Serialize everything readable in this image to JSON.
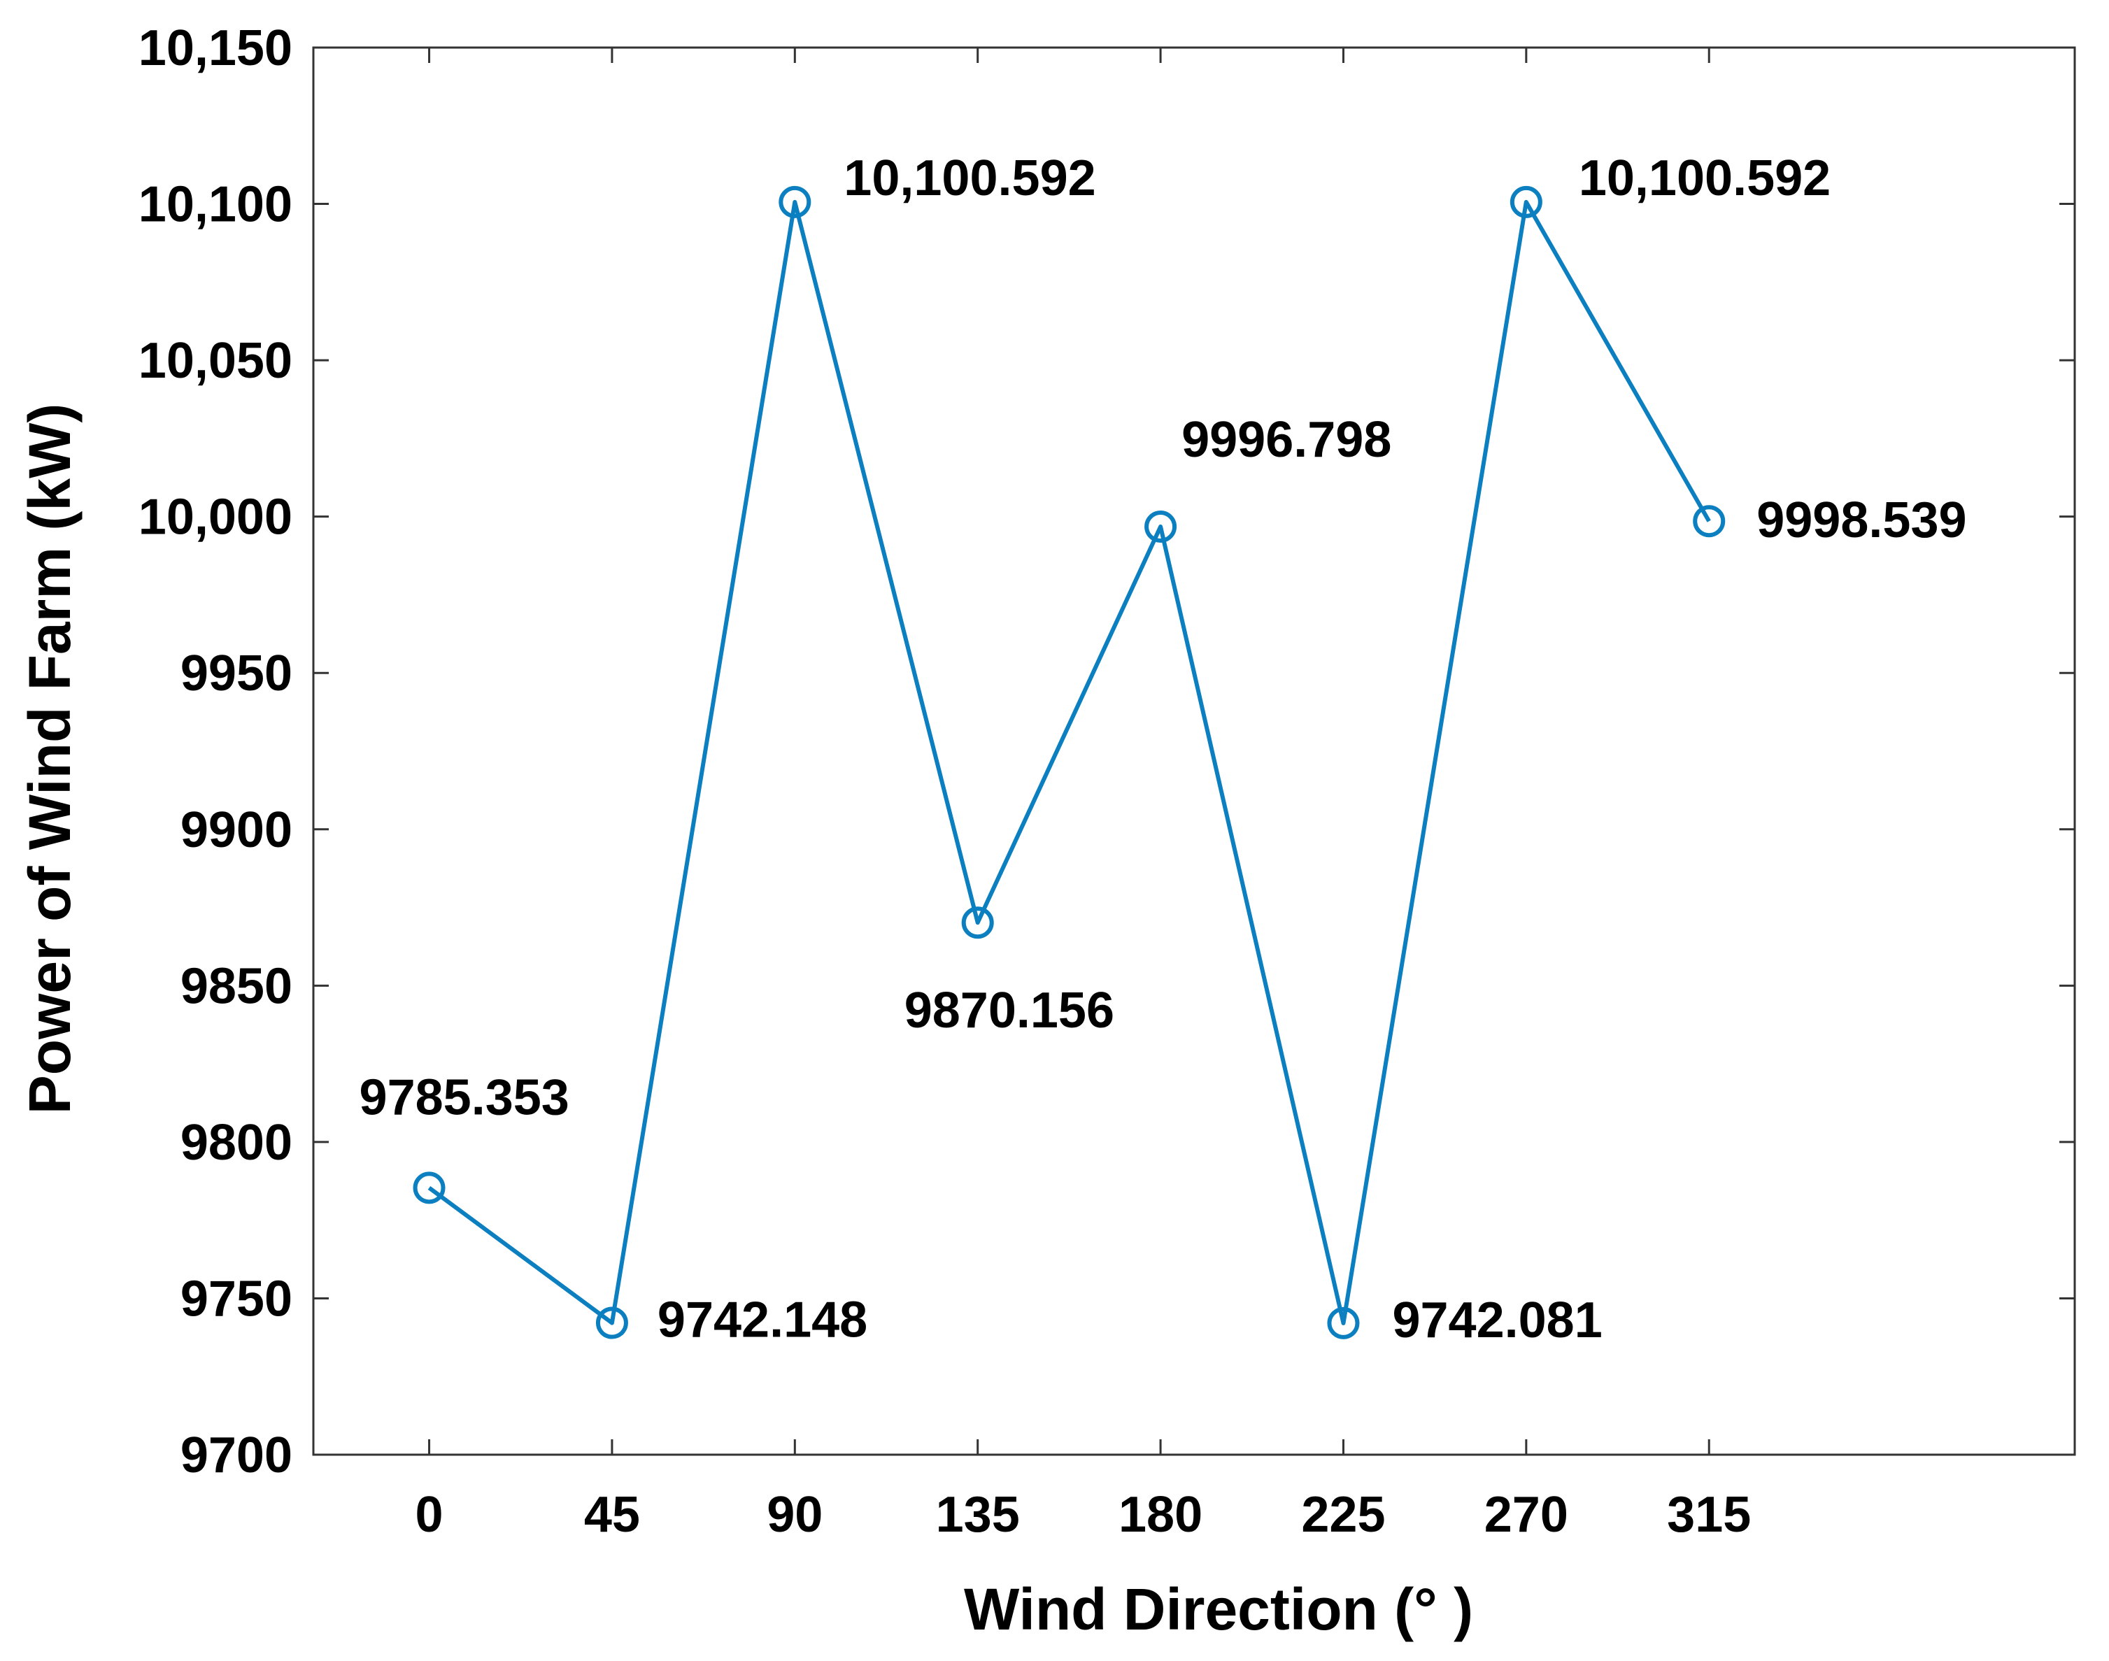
{
  "chart_data": {
    "type": "line",
    "title": "",
    "xlabel": "Wind Direction (° )",
    "ylabel": "Power of Wind Farm (kW)",
    "x": [
      0,
      45,
      90,
      135,
      180,
      225,
      270,
      315
    ],
    "x_tick_labels": [
      "0",
      "45",
      "90",
      "135",
      "180",
      "225",
      "270",
      "315"
    ],
    "xlim": [
      -28.5,
      405
    ],
    "ylim": [
      9700,
      10150
    ],
    "y_ticks": [
      9700,
      9750,
      9800,
      9850,
      9900,
      9950,
      10000,
      10050,
      10100,
      10150
    ],
    "y_tick_labels": [
      "9700",
      "9750",
      "9800",
      "9850",
      "9900",
      "9950",
      "10,000",
      "10,050",
      "10,100",
      "10,150"
    ],
    "grid": false,
    "legend": "none",
    "series": [
      {
        "values": [
          9785.353,
          9742.148,
          10100.592,
          9870.156,
          9996.798,
          9742.081,
          10100.592,
          9998.539
        ],
        "data_labels": [
          "9785.353",
          "9742.148",
          "10,100.592",
          "9870.156",
          "9996.798",
          "9742.081",
          "10,100.592",
          "9998.539"
        ],
        "marker": "circle-open",
        "color": "#0b7fbf"
      }
    ]
  }
}
